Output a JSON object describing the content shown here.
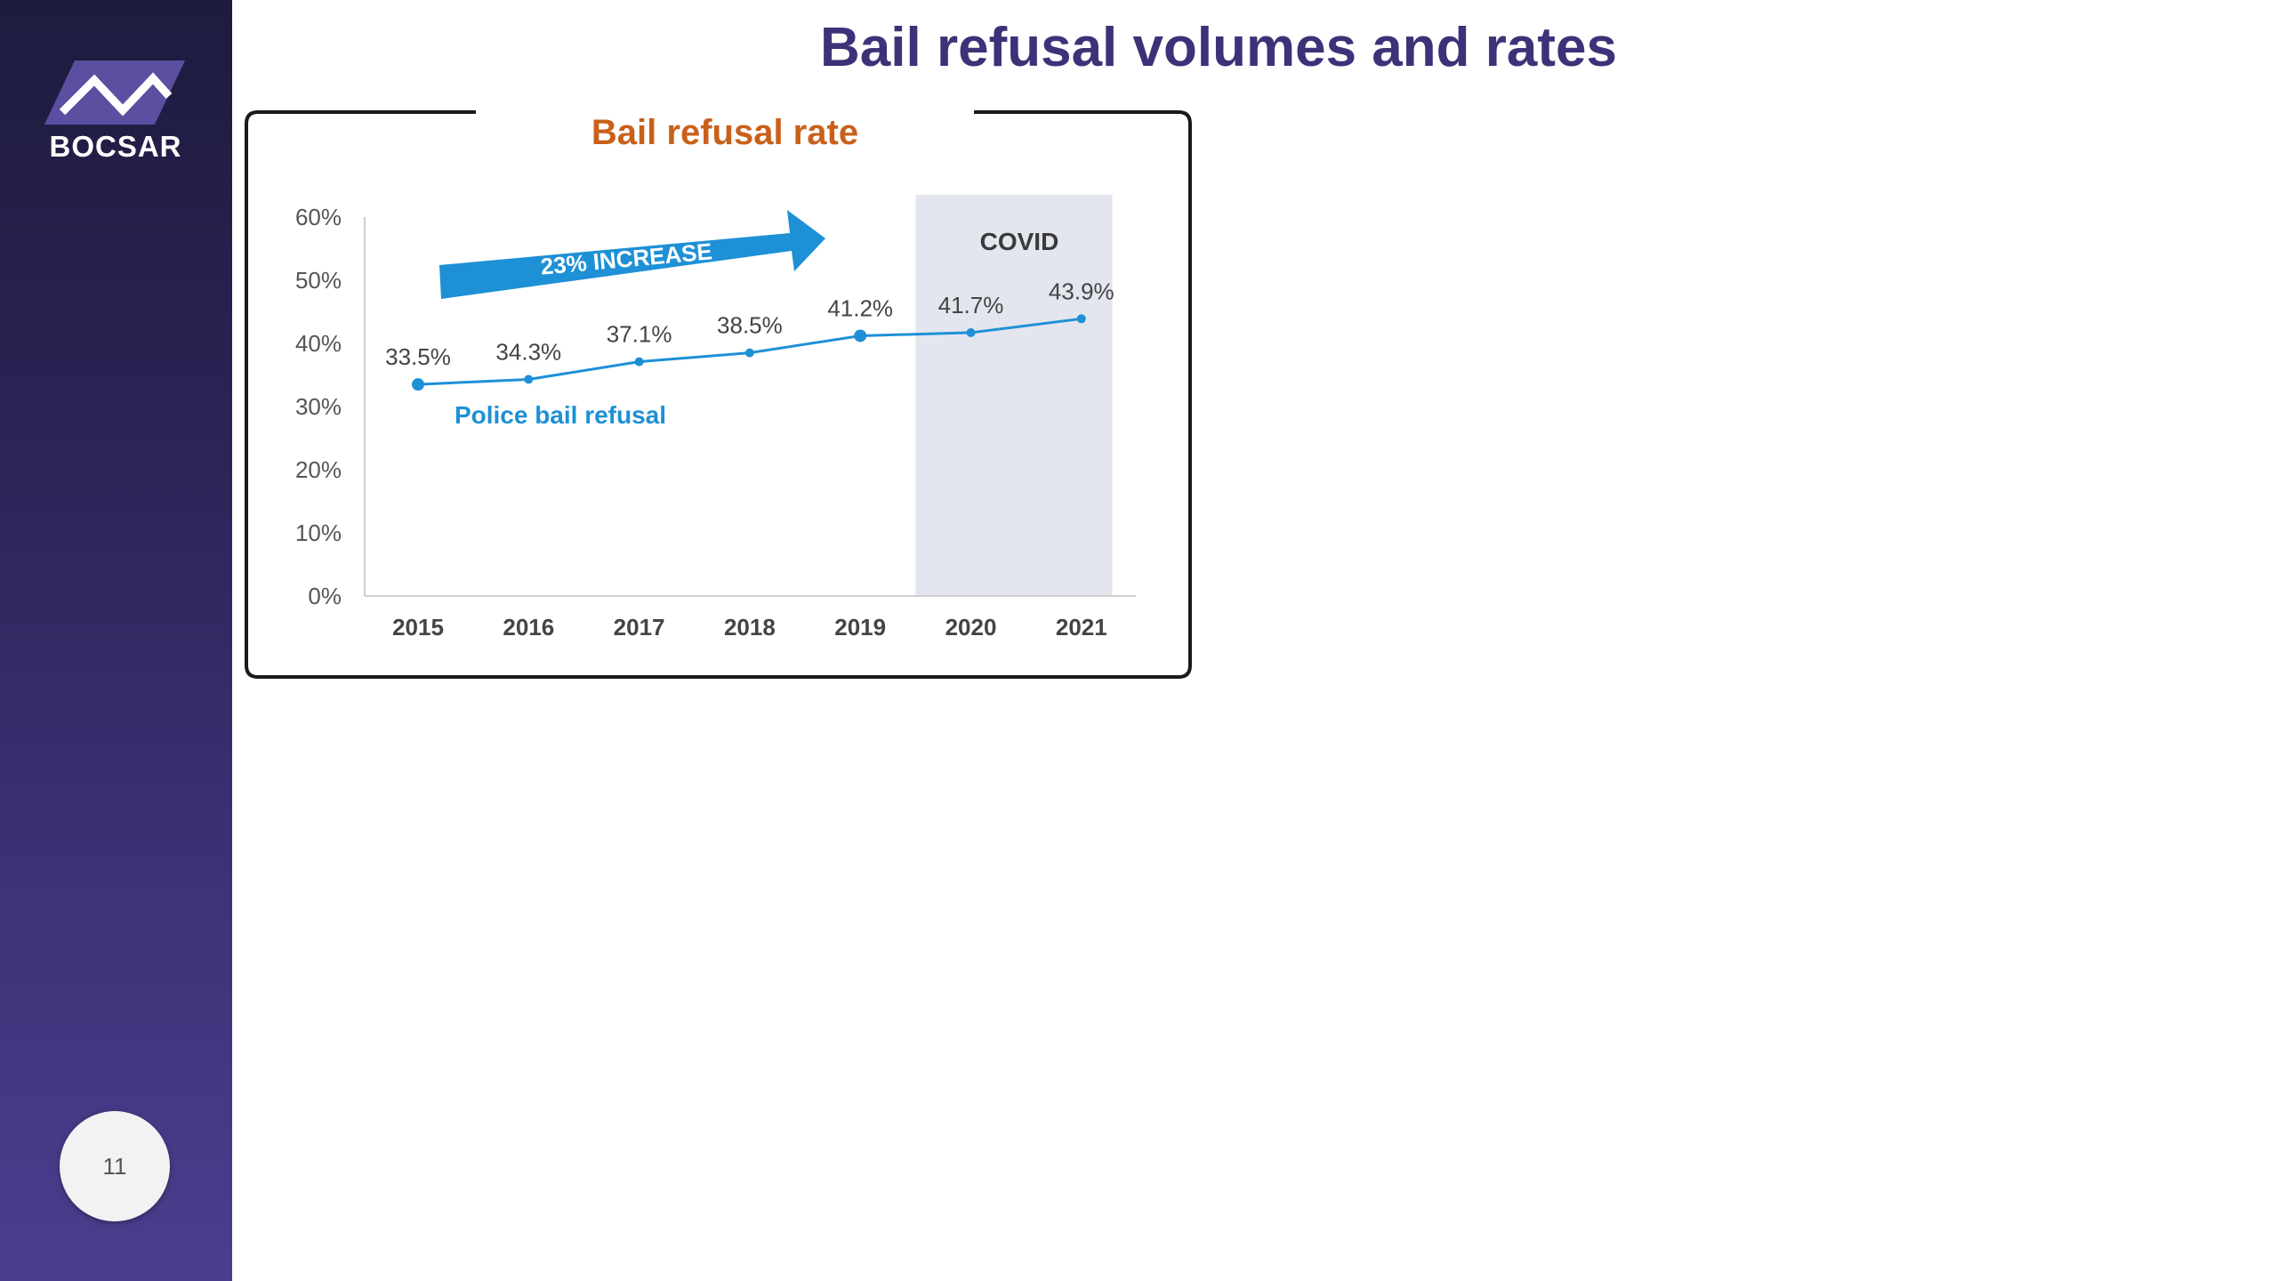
{
  "sidebar": {
    "logo_text": "BOCSAR",
    "page_number": "11"
  },
  "slide": {
    "title": "Bail refusal volumes and rates"
  },
  "colors": {
    "series_blue": "#1e90d6",
    "chart_title_orange": "#c9601a",
    "title_purple": "#3f3178",
    "covid_shade": "#e3e6ee"
  },
  "chart_data": {
    "type": "line",
    "title": "Bail refusal rate",
    "categories": [
      "2015",
      "2016",
      "2017",
      "2018",
      "2019",
      "2020",
      "2021"
    ],
    "series": [
      {
        "name": "Police bail refusal",
        "values": [
          33.5,
          34.3,
          37.1,
          38.5,
          41.2,
          41.7,
          43.9
        ],
        "data_labels": [
          "33.5%",
          "34.3%",
          "37.1%",
          "38.5%",
          "41.2%",
          "41.7%",
          "43.9%"
        ]
      }
    ],
    "y_ticks": [
      "0%",
      "10%",
      "20%",
      "30%",
      "40%",
      "50%",
      "60%"
    ],
    "ylim": [
      0,
      60
    ],
    "grid": false,
    "shaded_region": {
      "label": "COVID",
      "from_category": "2020",
      "to_category": "2021"
    },
    "annotation": {
      "text": "23% INCREASE"
    }
  }
}
